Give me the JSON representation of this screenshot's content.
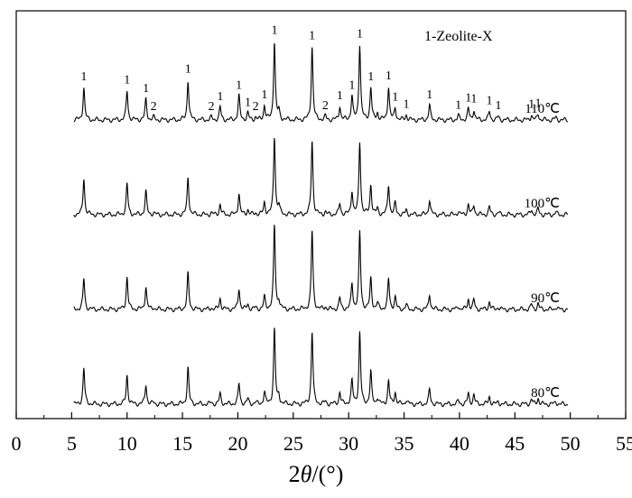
{
  "chart_data": {
    "type": "line",
    "legend": "1-Zeolite-X",
    "xlabel": "2θ/(°)",
    "xlim": [
      0,
      55
    ],
    "x_ticks": [
      0,
      5,
      10,
      15,
      20,
      25,
      30,
      35,
      40,
      45,
      50,
      55
    ],
    "x_tick_labels": [
      "0",
      "5",
      "10",
      "15",
      "20",
      "25",
      "30",
      "35",
      "40",
      "45",
      "50",
      "55"
    ],
    "y_ticks_shown": false,
    "grid": false,
    "series": [
      {
        "name": "80℃",
        "offset": 0
      },
      {
        "name": "90℃",
        "offset": 1
      },
      {
        "name": "100℃",
        "offset": 2
      },
      {
        "name": "110℃",
        "offset": 3
      }
    ],
    "peaks": [
      {
        "x": 6.1,
        "h": [
          0.42,
          0.36,
          0.43,
          0.38
        ],
        "phase": "1"
      },
      {
        "x": 10.0,
        "h": [
          0.34,
          0.38,
          0.36,
          0.34
        ],
        "phase": "1"
      },
      {
        "x": 11.7,
        "h": [
          0.23,
          0.27,
          0.27,
          0.24
        ],
        "phase": "1"
      },
      {
        "x": 12.4,
        "h": [
          0.02,
          0.02,
          0.02,
          0.03
        ],
        "phase": "2"
      },
      {
        "x": 15.5,
        "h": [
          0.43,
          0.42,
          0.44,
          0.47
        ],
        "phase": "1"
      },
      {
        "x": 17.6,
        "h": [
          0.02,
          0.02,
          0.02,
          0.03
        ],
        "phase": "2"
      },
      {
        "x": 18.4,
        "h": [
          0.12,
          0.13,
          0.12,
          0.15
        ],
        "phase": "1"
      },
      {
        "x": 20.1,
        "h": [
          0.24,
          0.25,
          0.25,
          0.28
        ],
        "phase": "1"
      },
      {
        "x": 20.9,
        "h": [
          0.06,
          0.06,
          0.06,
          0.08
        ],
        "phase": "1"
      },
      {
        "x": 21.6,
        "h": [
          0.02,
          0.02,
          0.02,
          0.03
        ],
        "phase": "2"
      },
      {
        "x": 22.4,
        "h": [
          0.14,
          0.14,
          0.14,
          0.17
        ],
        "phase": "1"
      },
      {
        "x": 23.3,
        "h": [
          0.88,
          0.98,
          0.92,
          0.92
        ],
        "phase": "1"
      },
      {
        "x": 23.7,
        "h": [
          0.1,
          0.1,
          0.1,
          0.1
        ],
        "phase": "1"
      },
      {
        "x": 26.7,
        "h": [
          0.85,
          0.92,
          0.87,
          0.86
        ],
        "phase": "1"
      },
      {
        "x": 27.9,
        "h": [
          0.03,
          0.03,
          0.03,
          0.04
        ],
        "phase": "2"
      },
      {
        "x": 29.2,
        "h": [
          0.14,
          0.13,
          0.13,
          0.16
        ],
        "phase": "1"
      },
      {
        "x": 30.3,
        "h": [
          0.27,
          0.3,
          0.28,
          0.28
        ],
        "phase": "1"
      },
      {
        "x": 31.0,
        "h": [
          0.83,
          0.9,
          0.85,
          0.88
        ],
        "phase": "1"
      },
      {
        "x": 32.0,
        "h": [
          0.37,
          0.36,
          0.35,
          0.38
        ],
        "phase": "1"
      },
      {
        "x": 32.6,
        "h": [
          0.07,
          0.07,
          0.07,
          0.08
        ],
        "phase": "1"
      },
      {
        "x": 33.6,
        "h": [
          0.27,
          0.35,
          0.35,
          0.39
        ],
        "phase": "1"
      },
      {
        "x": 34.2,
        "h": [
          0.14,
          0.14,
          0.13,
          0.14
        ],
        "phase": "1"
      },
      {
        "x": 35.2,
        "h": [
          0.05,
          0.05,
          0.05,
          0.06
        ],
        "phase": "1"
      },
      {
        "x": 37.3,
        "h": [
          0.17,
          0.18,
          0.18,
          0.17
        ],
        "phase": "1"
      },
      {
        "x": 39.9,
        "h": [
          0.04,
          0.04,
          0.04,
          0.05
        ],
        "phase": "1"
      },
      {
        "x": 40.8,
        "h": [
          0.12,
          0.12,
          0.12,
          0.13
        ],
        "phase": "1"
      },
      {
        "x": 41.3,
        "h": [
          0.11,
          0.11,
          0.11,
          0.12
        ],
        "phase": "1"
      },
      {
        "x": 42.7,
        "h": [
          0.09,
          0.09,
          0.09,
          0.1
        ],
        "phase": "1"
      },
      {
        "x": 43.5,
        "h": [
          0.03,
          0.03,
          0.03,
          0.04
        ],
        "phase": "1"
      },
      {
        "x": 46.5,
        "h": [
          0.06,
          0.06,
          0.06,
          0.06
        ],
        "phase": "1"
      },
      {
        "x": 47.1,
        "h": [
          0.07,
          0.07,
          0.07,
          0.07
        ],
        "phase": "1"
      },
      {
        "x": 48.7,
        "h": [
          0.03,
          0.03,
          0.03,
          0.03
        ],
        "phase": "1"
      }
    ],
    "annotations": [
      {
        "label": "1",
        "x": 6.1
      },
      {
        "label": "1",
        "x": 10.0
      },
      {
        "label": "1",
        "x": 11.7
      },
      {
        "label": "2",
        "x": 12.4
      },
      {
        "label": "1",
        "x": 15.5
      },
      {
        "label": "2",
        "x": 17.6
      },
      {
        "label": "1",
        "x": 18.4
      },
      {
        "label": "1",
        "x": 20.1
      },
      {
        "label": "1",
        "x": 20.9
      },
      {
        "label": "2",
        "x": 21.6
      },
      {
        "label": "1",
        "x": 22.4
      },
      {
        "label": "1",
        "x": 23.3
      },
      {
        "label": "1",
        "x": 26.7
      },
      {
        "label": "2",
        "x": 27.9
      },
      {
        "label": "1",
        "x": 29.2
      },
      {
        "label": "1",
        "x": 30.3
      },
      {
        "label": "1",
        "x": 31.0
      },
      {
        "label": "1",
        "x": 32.0
      },
      {
        "label": "1",
        "x": 33.6
      },
      {
        "label": "1",
        "x": 34.2
      },
      {
        "label": "1",
        "x": 35.2
      },
      {
        "label": "1",
        "x": 37.3
      },
      {
        "label": "1",
        "x": 39.9
      },
      {
        "label": "1",
        "x": 40.8
      },
      {
        "label": "1",
        "x": 41.3
      },
      {
        "label": "1",
        "x": 42.7
      },
      {
        "label": "1",
        "x": 43.5
      },
      {
        "label": "1",
        "x": 46.5
      },
      {
        "label": "1",
        "x": 47.1
      }
    ]
  }
}
